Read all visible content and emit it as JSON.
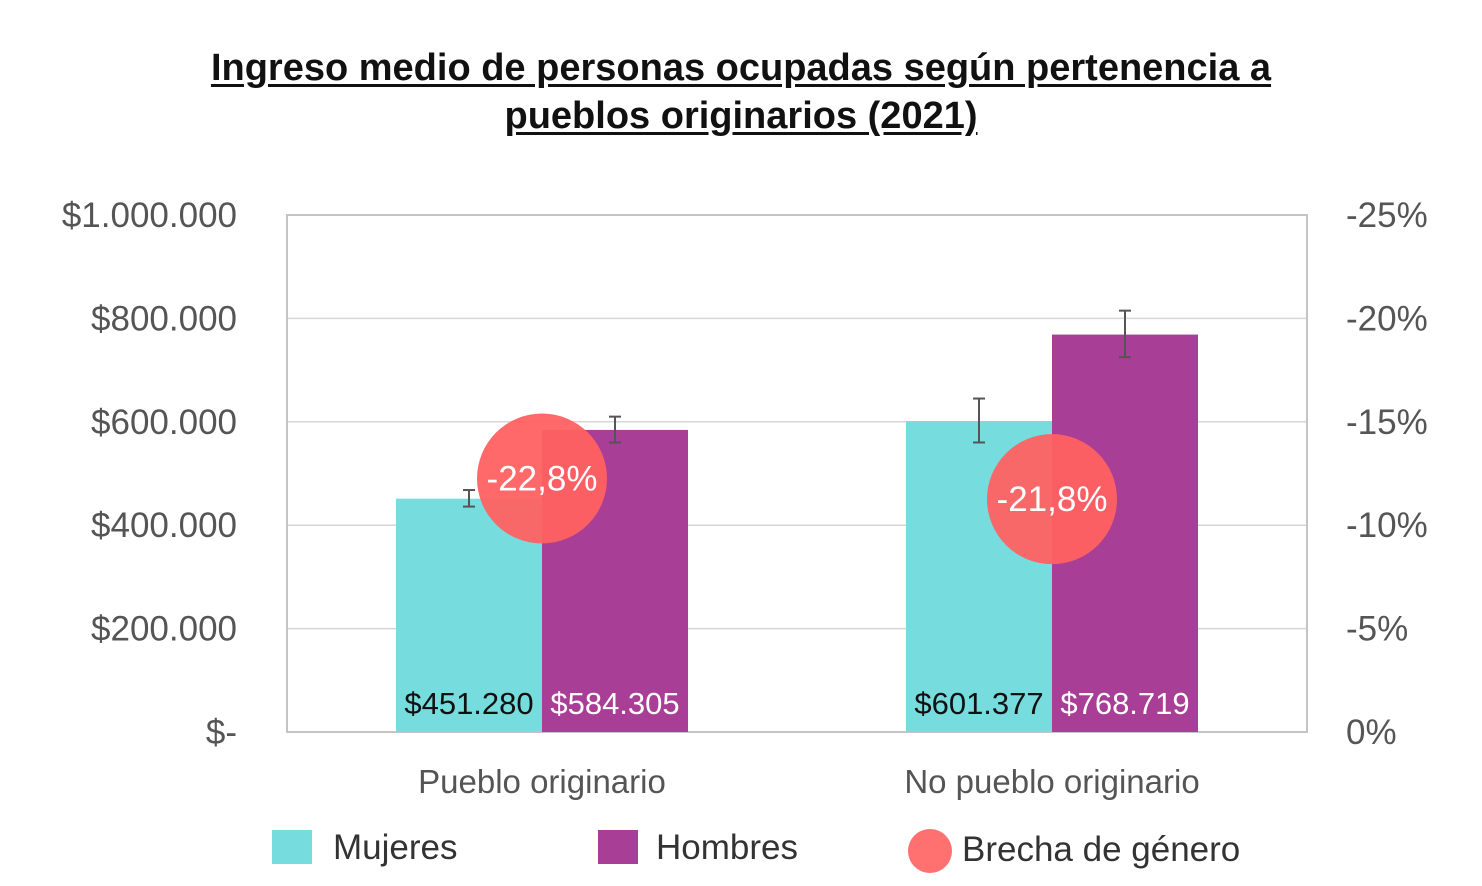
{
  "chart_data": {
    "type": "bar",
    "title_line1": "Ingreso medio de personas ocupadas según pertenencia a",
    "title_line2": "pueblos originarios (2021)",
    "categories": [
      "Pueblo originario",
      "No pueblo originario"
    ],
    "series": [
      {
        "name": "Mujeres",
        "color": "#76DCDD",
        "label_color": "#111111",
        "values": [
          451280,
          601377
        ],
        "labels": [
          "$451.280",
          "$601.377"
        ],
        "error_low": [
          436000,
          560000
        ],
        "error_high": [
          468000,
          645000
        ]
      },
      {
        "name": "Hombres",
        "color": "#A93E96",
        "label_color": "#ffffff",
        "values": [
          584305,
          768719
        ],
        "labels": [
          "$584.305",
          "$768.719"
        ],
        "error_low": [
          560000,
          725000
        ],
        "error_high": [
          610000,
          815000
        ]
      }
    ],
    "gap_series": {
      "name": "Brecha de género",
      "color": "#FF6161",
      "values": [
        -22.8,
        -21.8
      ],
      "labels": [
        "-22,8%",
        "-21,8%"
      ]
    },
    "y_left": {
      "min": 0,
      "max": 1000000,
      "ticks": [
        0,
        200000,
        400000,
        600000,
        800000,
        1000000
      ],
      "tick_labels": [
        "$-",
        "$200.000",
        "$400.000",
        "$600.000",
        "$800.000",
        "$1.000.000"
      ]
    },
    "y_right": {
      "min": 0,
      "max": -25,
      "ticks": [
        0,
        -5,
        -10,
        -15,
        -20,
        -25
      ],
      "tick_labels": [
        "0%",
        "-5%",
        "-10%",
        "-15%",
        "-20%",
        "-25%"
      ]
    },
    "grid": true,
    "legend_position": "bottom"
  }
}
